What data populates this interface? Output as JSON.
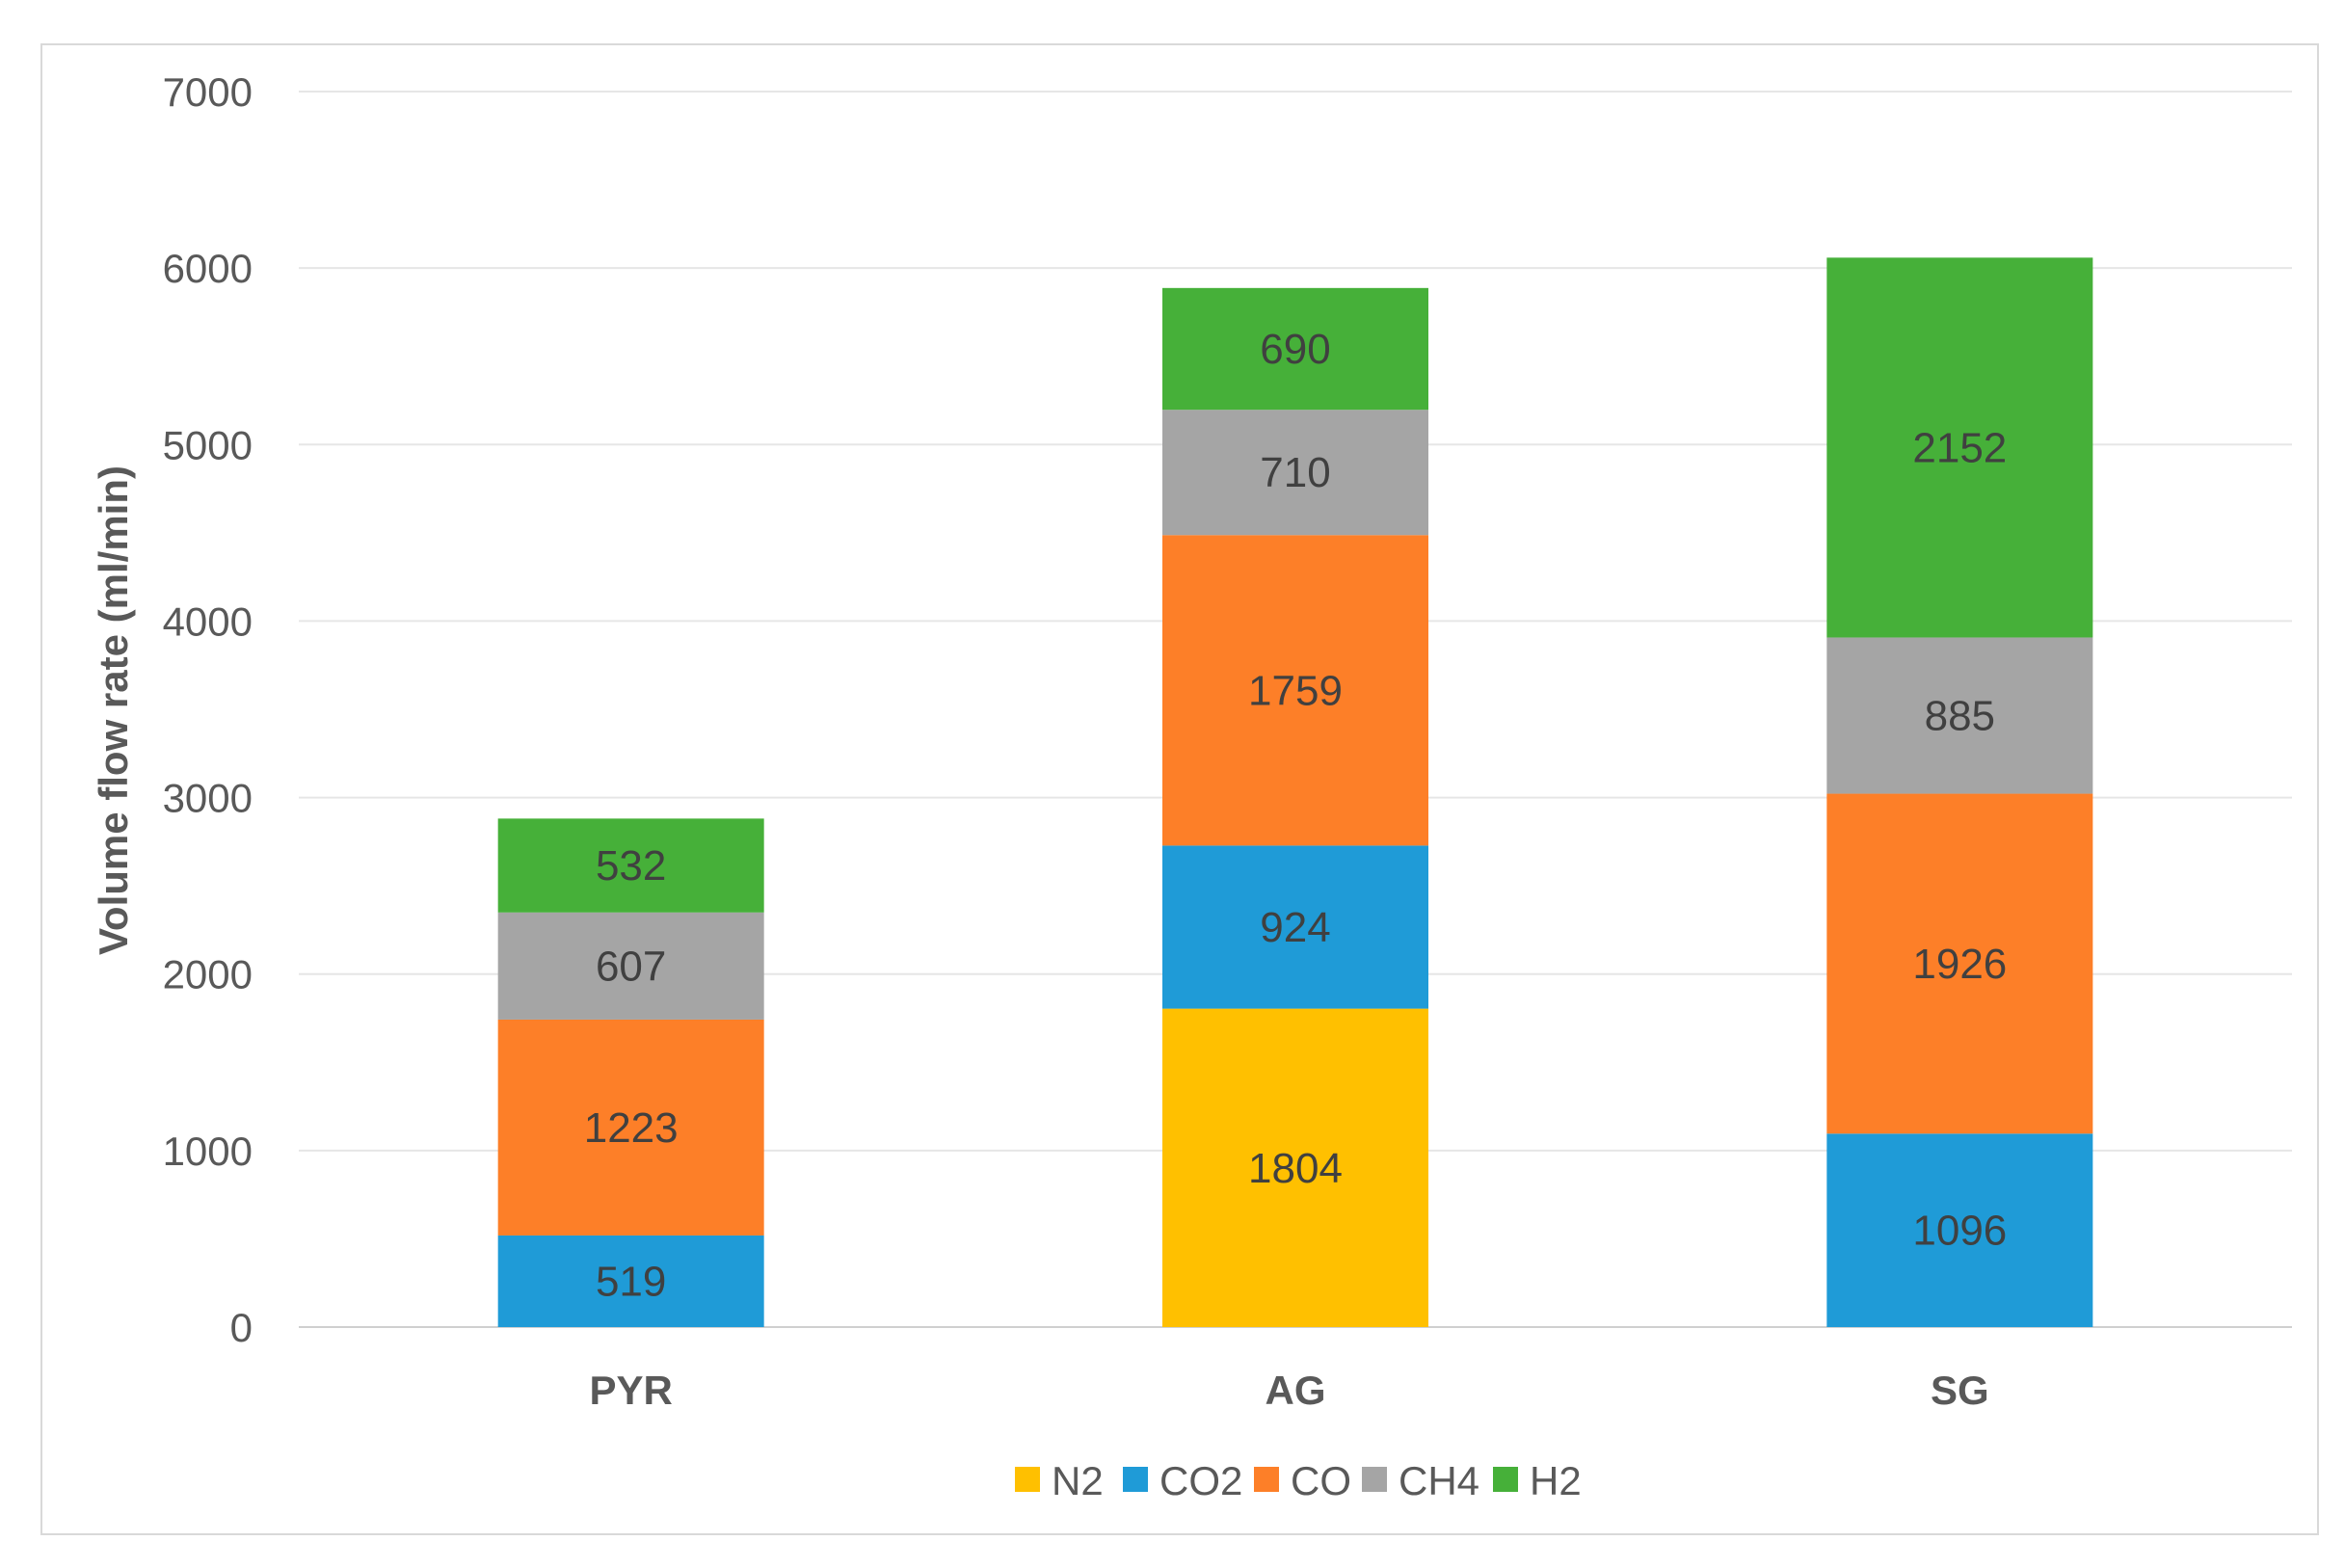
{
  "chart_data": {
    "type": "bar",
    "stacked": true,
    "title": "",
    "xlabel": "",
    "ylabel": "Volume flow rate (ml/min)",
    "ylim": [
      0,
      7000
    ],
    "yticks": [
      0,
      1000,
      2000,
      3000,
      4000,
      5000,
      6000,
      7000
    ],
    "grid": true,
    "legend_position": "bottom",
    "categories": [
      "PYR",
      "AG",
      "SG"
    ],
    "series": [
      {
        "name": "N2",
        "color": "#ffc000",
        "values": [
          0,
          1804,
          0
        ]
      },
      {
        "name": "CO2",
        "color": "#1f9bd7",
        "values": [
          519,
          924,
          1096
        ]
      },
      {
        "name": "CO",
        "color": "#fd7f28",
        "values": [
          1223,
          1759,
          1926
        ]
      },
      {
        "name": "CH4",
        "color": "#a5a5a5",
        "values": [
          607,
          710,
          885
        ]
      },
      {
        "name": "H2",
        "color": "#46b039",
        "values": [
          532,
          690,
          2152
        ]
      }
    ]
  }
}
